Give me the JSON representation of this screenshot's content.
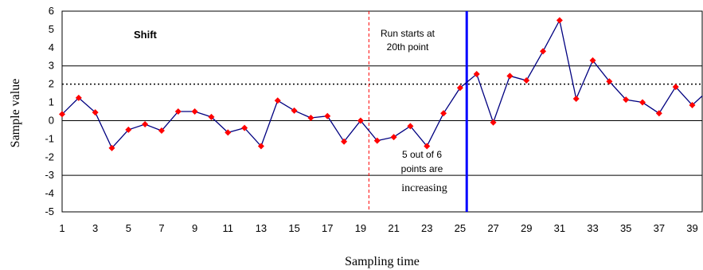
{
  "chart_data": {
    "type": "line",
    "title": "",
    "xlabel": "Sampling time",
    "ylabel": "Sample value",
    "ylim": [
      -5,
      6
    ],
    "y_ticks": [
      6,
      5,
      4,
      3,
      2,
      1,
      0,
      -1,
      -2,
      -3,
      -4,
      -5
    ],
    "x_tick_labels": [
      1,
      3,
      5,
      7,
      9,
      11,
      13,
      15,
      17,
      19,
      21,
      23,
      25,
      27,
      29,
      31,
      33,
      35,
      37,
      39
    ],
    "x_range": [
      1,
      39.6
    ],
    "series": [
      {
        "x": [
          1,
          2,
          3,
          4,
          5,
          6,
          7,
          8,
          9,
          10,
          11,
          12,
          13,
          14,
          15,
          16,
          17,
          18,
          19,
          20,
          21,
          22,
          23,
          24,
          25,
          26,
          27,
          28,
          29,
          30,
          31,
          32,
          33,
          34,
          35,
          36,
          37,
          38,
          39,
          39.6
        ],
        "values": [
          0.35,
          1.25,
          0.45,
          -1.5,
          -0.5,
          -0.2,
          -0.55,
          0.5,
          0.5,
          0.2,
          -0.65,
          -0.4,
          -1.4,
          1.1,
          0.55,
          0.15,
          0.25,
          -1.15,
          0,
          -1.1,
          -0.9,
          -0.3,
          -1.4,
          0.4,
          1.8,
          2.55,
          -0.1,
          2.45,
          2.2,
          3.8,
          5.5,
          1.2,
          3.3,
          2.15,
          1.15,
          1.0,
          0.4,
          1.85,
          0.85,
          1.35
        ],
        "line_color": "#000080",
        "marker_color": "#ff0000"
      }
    ],
    "reference_lines": [
      {
        "y": 3,
        "style": "solid"
      },
      {
        "y": 0,
        "style": "solid"
      },
      {
        "y": -3,
        "style": "solid"
      },
      {
        "y": 2,
        "style": "dotted"
      }
    ],
    "vertical_markers": [
      {
        "x": 19.5,
        "color": "#ff0000",
        "style": "dashed"
      },
      {
        "x": 25.4,
        "color": "#0000ff",
        "style": "solid-thick"
      }
    ],
    "annotations": {
      "panel_label": "Shift",
      "run_start": [
        "Run starts at",
        "20th point"
      ],
      "increasing": [
        "5 out of 6",
        "points are",
        "increasing"
      ]
    }
  }
}
